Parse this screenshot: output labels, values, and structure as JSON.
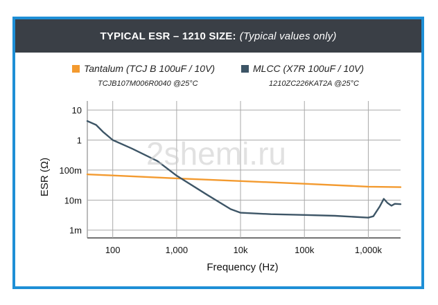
{
  "header": {
    "title_bold": "TYPICAL ESR – 1210 SIZE:",
    "title_italic": "(Typical values only)"
  },
  "watermark": "2shemi.ru",
  "colors": {
    "frame": "#1e8fd6",
    "header_bg": "#3a3f46",
    "tantalum": "#f39a2f",
    "mlcc": "#3d5566",
    "grid": "#a9a9a9"
  },
  "chart_data": {
    "type": "line",
    "xlabel": "Frequency (Hz)",
    "ylabel": "ESR (Ω)",
    "x_scale": "log",
    "y_scale": "log",
    "xlim": [
      40,
      3200000
    ],
    "ylim": [
      0.00055,
      20
    ],
    "grid": true,
    "legend_position": "top",
    "x_ticks": [
      {
        "value": 100,
        "label": "100"
      },
      {
        "value": 1000,
        "label": "1,000"
      },
      {
        "value": 10000,
        "label": "10k"
      },
      {
        "value": 100000,
        "label": "100k"
      },
      {
        "value": 1000000,
        "label": "1,000k"
      }
    ],
    "y_ticks": [
      {
        "value": 10,
        "label": "10"
      },
      {
        "value": 1,
        "label": "1"
      },
      {
        "value": 0.1,
        "label": "100m"
      },
      {
        "value": 0.01,
        "label": "10m"
      },
      {
        "value": 0.001,
        "label": "1m"
      }
    ],
    "series": [
      {
        "name": "Tantalum (TCJ B 100uF / 10V)",
        "sub": "TCJB107M006R0040 @25°C",
        "color": "#f39a2f",
        "points": [
          [
            40,
            0.072
          ],
          [
            100,
            0.066
          ],
          [
            1000,
            0.053
          ],
          [
            10000,
            0.043
          ],
          [
            100000,
            0.035
          ],
          [
            1000000,
            0.028
          ],
          [
            3200000,
            0.027
          ]
        ]
      },
      {
        "name": "MLCC (X7R 100uF / 10V)",
        "sub": "1210ZC226KAT2A @25°C",
        "color": "#3d5566",
        "points": [
          [
            40,
            4.3
          ],
          [
            55,
            3.2
          ],
          [
            70,
            1.9
          ],
          [
            100,
            1.0
          ],
          [
            200,
            0.52
          ],
          [
            500,
            0.2
          ],
          [
            1000,
            0.065
          ],
          [
            3000,
            0.015
          ],
          [
            7000,
            0.005
          ],
          [
            10000,
            0.0038
          ],
          [
            30000,
            0.0034
          ],
          [
            100000,
            0.0032
          ],
          [
            300000,
            0.003
          ],
          [
            1000000,
            0.0026
          ],
          [
            1200000,
            0.0029
          ],
          [
            1500000,
            0.006
          ],
          [
            1750000,
            0.011
          ],
          [
            2000000,
            0.008
          ],
          [
            2300000,
            0.0065
          ],
          [
            2600000,
            0.0075
          ],
          [
            3200000,
            0.0073
          ]
        ]
      }
    ]
  }
}
